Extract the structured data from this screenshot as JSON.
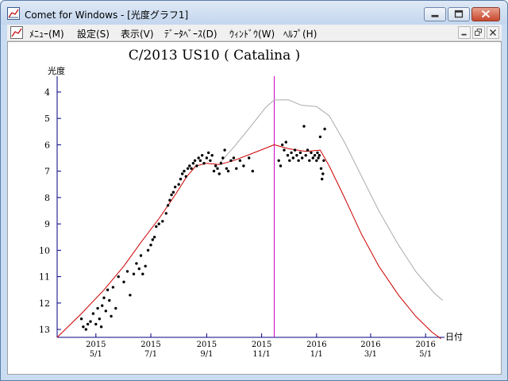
{
  "window": {
    "title": "Comet for Windows - [光度グラフ1]",
    "accent_color": "#c3d6ee"
  },
  "menu": {
    "items": [
      "ﾒﾆｭｰ(M)",
      "設定(S)",
      "表示(V)",
      "ﾃﾞｰﾀﾍﾞｰｽ(D)",
      "ｳｨﾝﾄﾞｳ(W)",
      "ﾍﾙﾌﾟ(H)"
    ]
  },
  "chart_data": {
    "type": "scatter",
    "title": "C/2013 US10 ( Catalina )",
    "ylabel": "光度",
    "xlabel": "日付",
    "ylim": [
      13.3,
      3.4
    ],
    "y_ticks": [
      4,
      5,
      6,
      7,
      8,
      9,
      10,
      11,
      12,
      13
    ],
    "x_range": [
      "2015-03-19",
      "2016-05-22"
    ],
    "x_ticks": [
      {
        "date": "2015-05-01",
        "year": "2015",
        "md": "5/1"
      },
      {
        "date": "2015-07-01",
        "year": "2015",
        "md": "7/1"
      },
      {
        "date": "2015-09-01",
        "year": "2015",
        "md": "9/1"
      },
      {
        "date": "2015-11-01",
        "year": "2015",
        "md": "11/1"
      },
      {
        "date": "2016-01-01",
        "year": "2016",
        "md": "1/1"
      },
      {
        "date": "2016-03-01",
        "year": "2016",
        "md": "3/1"
      },
      {
        "date": "2016-05-01",
        "year": "2016",
        "md": "5/1"
      }
    ],
    "marker_date": "2015-11-15",
    "colors": {
      "predicted_total": "#cc0000",
      "predicted_nuclear": "#aaaaaa",
      "marker": "#cc00cc",
      "observations": "#000000",
      "axis": "#000080"
    },
    "series": [
      {
        "values": [
          [
            "2015-03-19",
            13.3
          ],
          [
            "2015-04-15",
            12.4
          ],
          [
            "2015-05-10",
            11.5
          ],
          [
            "2015-06-01",
            10.6
          ],
          [
            "2015-06-20",
            9.7
          ],
          [
            "2015-07-10",
            8.8
          ],
          [
            "2015-07-28",
            7.9
          ],
          [
            "2015-08-10",
            7.2
          ],
          [
            "2015-08-20",
            6.8
          ],
          [
            "2015-09-01",
            6.7
          ],
          [
            "2015-09-15",
            6.75
          ],
          [
            "2015-10-01",
            6.6
          ],
          [
            "2015-10-20",
            6.35
          ],
          [
            "2015-11-15",
            6.0
          ],
          [
            "2015-12-01",
            6.15
          ],
          [
            "2015-12-20",
            6.25
          ],
          [
            "2016-01-05",
            6.2
          ],
          [
            "2016-01-15",
            6.8
          ],
          [
            "2016-02-01",
            8.0
          ],
          [
            "2016-02-20",
            9.4
          ],
          [
            "2016-03-10",
            10.6
          ],
          [
            "2016-04-01",
            11.7
          ],
          [
            "2016-04-20",
            12.5
          ],
          [
            "2016-05-08",
            13.1
          ],
          [
            "2016-05-18",
            13.35
          ]
        ]
      },
      {
        "values": [
          [
            "2015-09-15",
            6.7
          ],
          [
            "2015-10-01",
            6.1
          ],
          [
            "2015-10-20",
            5.3
          ],
          [
            "2015-11-05",
            4.6
          ],
          [
            "2015-11-15",
            4.3
          ],
          [
            "2015-12-01",
            4.3
          ],
          [
            "2015-12-15",
            4.5
          ],
          [
            "2016-01-01",
            4.55
          ],
          [
            "2016-01-15",
            4.9
          ],
          [
            "2016-02-01",
            5.9
          ],
          [
            "2016-02-20",
            7.2
          ],
          [
            "2016-03-10",
            8.5
          ],
          [
            "2016-04-01",
            9.8
          ],
          [
            "2016-04-20",
            10.8
          ],
          [
            "2016-05-10",
            11.6
          ],
          [
            "2016-05-20",
            11.9
          ]
        ]
      }
    ],
    "observations": [
      [
        "2015-04-15",
        12.6
      ],
      [
        "2015-04-17",
        12.9
      ],
      [
        "2015-04-20",
        13.0
      ],
      [
        "2015-04-22",
        12.8
      ],
      [
        "2015-04-25",
        12.7
      ],
      [
        "2015-04-28",
        12.4
      ],
      [
        "2015-05-01",
        12.8
      ],
      [
        "2015-05-03",
        12.2
      ],
      [
        "2015-05-05",
        12.6
      ],
      [
        "2015-05-07",
        12.9
      ],
      [
        "2015-05-08",
        12.1
      ],
      [
        "2015-05-10",
        11.8
      ],
      [
        "2015-05-12",
        12.3
      ],
      [
        "2015-05-14",
        11.5
      ],
      [
        "2015-05-16",
        11.9
      ],
      [
        "2015-05-18",
        12.5
      ],
      [
        "2015-05-20",
        11.4
      ],
      [
        "2015-05-23",
        12.2
      ],
      [
        "2015-05-26",
        11.0
      ],
      [
        "2015-06-01",
        11.2
      ],
      [
        "2015-06-05",
        10.8
      ],
      [
        "2015-06-08",
        11.7
      ],
      [
        "2015-06-12",
        10.9
      ],
      [
        "2015-06-15",
        10.5
      ],
      [
        "2015-06-18",
        10.7
      ],
      [
        "2015-06-20",
        10.2
      ],
      [
        "2015-06-22",
        10.9
      ],
      [
        "2015-06-25",
        10.6
      ],
      [
        "2015-06-28",
        10.0
      ],
      [
        "2015-07-01",
        9.8
      ],
      [
        "2015-07-03",
        9.6
      ],
      [
        "2015-07-05",
        9.5
      ],
      [
        "2015-07-07",
        9.1
      ],
      [
        "2015-07-10",
        9.0
      ],
      [
        "2015-07-14",
        8.9
      ],
      [
        "2015-07-18",
        8.6
      ],
      [
        "2015-07-20",
        8.3
      ],
      [
        "2015-07-22",
        8.1
      ],
      [
        "2015-07-24",
        7.9
      ],
      [
        "2015-07-26",
        7.8
      ],
      [
        "2015-07-28",
        7.6
      ],
      [
        "2015-08-01",
        7.5
      ],
      [
        "2015-08-03",
        7.3
      ],
      [
        "2015-08-05",
        7.1
      ],
      [
        "2015-08-07",
        7.0
      ],
      [
        "2015-08-09",
        7.2
      ],
      [
        "2015-08-11",
        6.9
      ],
      [
        "2015-08-13",
        6.8
      ],
      [
        "2015-08-15",
        6.9
      ],
      [
        "2015-08-17",
        6.7
      ],
      [
        "2015-08-19",
        6.6
      ],
      [
        "2015-08-21",
        6.8
      ],
      [
        "2015-08-23",
        6.5
      ],
      [
        "2015-08-25",
        6.6
      ],
      [
        "2015-08-27",
        6.4
      ],
      [
        "2015-08-29",
        6.7
      ],
      [
        "2015-09-01",
        6.5
      ],
      [
        "2015-09-03",
        6.3
      ],
      [
        "2015-09-05",
        6.6
      ],
      [
        "2015-09-07",
        6.4
      ],
      [
        "2015-09-09",
        7.0
      ],
      [
        "2015-09-11",
        6.8
      ],
      [
        "2015-09-13",
        6.9
      ],
      [
        "2015-09-15",
        7.1
      ],
      [
        "2015-09-17",
        6.7
      ],
      [
        "2015-09-19",
        6.5
      ],
      [
        "2015-09-21",
        6.2
      ],
      [
        "2015-09-23",
        6.9
      ],
      [
        "2015-09-25",
        7.0
      ],
      [
        "2015-09-28",
        6.6
      ],
      [
        "2015-10-01",
        6.5
      ],
      [
        "2015-10-04",
        6.9
      ],
      [
        "2015-10-08",
        6.6
      ],
      [
        "2015-10-12",
        6.8
      ],
      [
        "2015-10-18",
        6.5
      ],
      [
        "2015-10-22",
        7.0
      ],
      [
        "2015-11-20",
        6.6
      ],
      [
        "2015-11-22",
        6.8
      ],
      [
        "2015-11-24",
        6.0
      ],
      [
        "2015-11-26",
        6.2
      ],
      [
        "2015-11-28",
        5.9
      ],
      [
        "2015-11-30",
        6.4
      ],
      [
        "2015-12-02",
        6.6
      ],
      [
        "2015-12-04",
        6.3
      ],
      [
        "2015-12-06",
        6.5
      ],
      [
        "2015-12-08",
        6.2
      ],
      [
        "2015-12-10",
        6.4
      ],
      [
        "2015-12-12",
        6.6
      ],
      [
        "2015-12-14",
        6.3
      ],
      [
        "2015-12-16",
        6.5
      ],
      [
        "2015-12-18",
        5.3
      ],
      [
        "2015-12-20",
        6.4
      ],
      [
        "2015-12-22",
        6.2
      ],
      [
        "2015-12-24",
        6.6
      ],
      [
        "2015-12-26",
        6.3
      ],
      [
        "2015-12-28",
        6.5
      ],
      [
        "2015-12-30",
        6.4
      ],
      [
        "2016-01-01",
        6.6
      ],
      [
        "2016-01-02",
        6.3
      ],
      [
        "2016-01-03",
        6.5
      ],
      [
        "2016-01-04",
        6.4
      ],
      [
        "2016-01-05",
        5.7
      ],
      [
        "2016-01-06",
        6.9
      ],
      [
        "2016-01-07",
        7.3
      ],
      [
        "2016-01-08",
        7.1
      ],
      [
        "2016-01-09",
        6.6
      ],
      [
        "2016-01-10",
        5.4
      ]
    ]
  }
}
